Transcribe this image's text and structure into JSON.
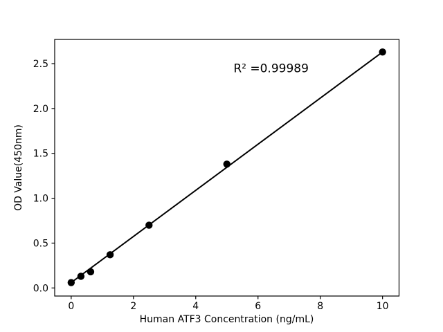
{
  "figure": {
    "background": "#ffffff",
    "foreground": "#000000"
  },
  "chart_data": {
    "type": "scatter",
    "title": "",
    "xlabel": "Human ATF3 Concentration (ng/mL)",
    "ylabel": "OD Value(450nm)",
    "x": [
      0,
      0.3125,
      0.625,
      1.25,
      2.5,
      5,
      10
    ],
    "y": [
      0.06,
      0.13,
      0.18,
      0.37,
      0.7,
      1.38,
      2.63
    ],
    "fit_line": {
      "x": [
        0,
        10
      ],
      "y": [
        0.06,
        2.63
      ]
    },
    "annotation": {
      "text": "R² =0.99989",
      "x": 6.42,
      "y": 2.45
    },
    "xlim": [
      -0.53,
      10.53
    ],
    "ylim": [
      -0.09,
      2.77
    ],
    "xticks": [
      "0",
      "2",
      "4",
      "6",
      "8",
      "10"
    ],
    "xtick_values": [
      0,
      2,
      4,
      6,
      8,
      10
    ],
    "yticks": [
      "0.0",
      "0.5",
      "1.0",
      "1.5",
      "2.0",
      "2.5"
    ],
    "ytick_values": [
      0,
      0.5,
      1.0,
      1.5,
      2.0,
      2.5
    ],
    "marker_color": "#000000",
    "line_color": "#000000",
    "grid": false,
    "legend": null
  }
}
